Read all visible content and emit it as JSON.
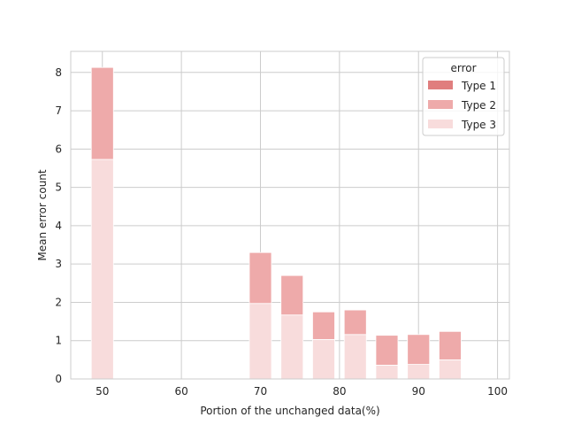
{
  "chart_data": {
    "type": "bar",
    "xlabel": "Portion of the unchanged data(%)",
    "ylabel": "Mean error count",
    "xlim": [
      46,
      101.5
    ],
    "ylim": [
      0,
      8.55
    ],
    "xticks": [
      50,
      60,
      70,
      80,
      90,
      100
    ],
    "yticks": [
      0,
      1,
      2,
      3,
      4,
      5,
      6,
      7,
      8
    ],
    "grid": true,
    "stacked": true,
    "bar_width": 2.8,
    "x": [
      50,
      70,
      74,
      78,
      82,
      86,
      90,
      94
    ],
    "series": [
      {
        "name": "Type 3",
        "color": "#f8dcdc",
        "values": [
          5.73,
          1.97,
          1.67,
          1.03,
          1.16,
          0.36,
          0.38,
          0.5
        ]
      },
      {
        "name": "Type 2",
        "color": "#eeaaaa",
        "values": [
          2.4,
          1.33,
          1.03,
          0.72,
          0.64,
          0.78,
          0.78,
          0.74
        ]
      },
      {
        "name": "Type 1",
        "color": "#e07e7e",
        "values": [
          0,
          0,
          0,
          0,
          0,
          0,
          0,
          0
        ]
      }
    ],
    "legend": {
      "title": "error",
      "position": "top-right",
      "entries": [
        {
          "label": "Type 1",
          "color": "#e07e7e"
        },
        {
          "label": "Type 2",
          "color": "#eeaaaa"
        },
        {
          "label": "Type 3",
          "color": "#f8dcdc"
        }
      ]
    }
  }
}
